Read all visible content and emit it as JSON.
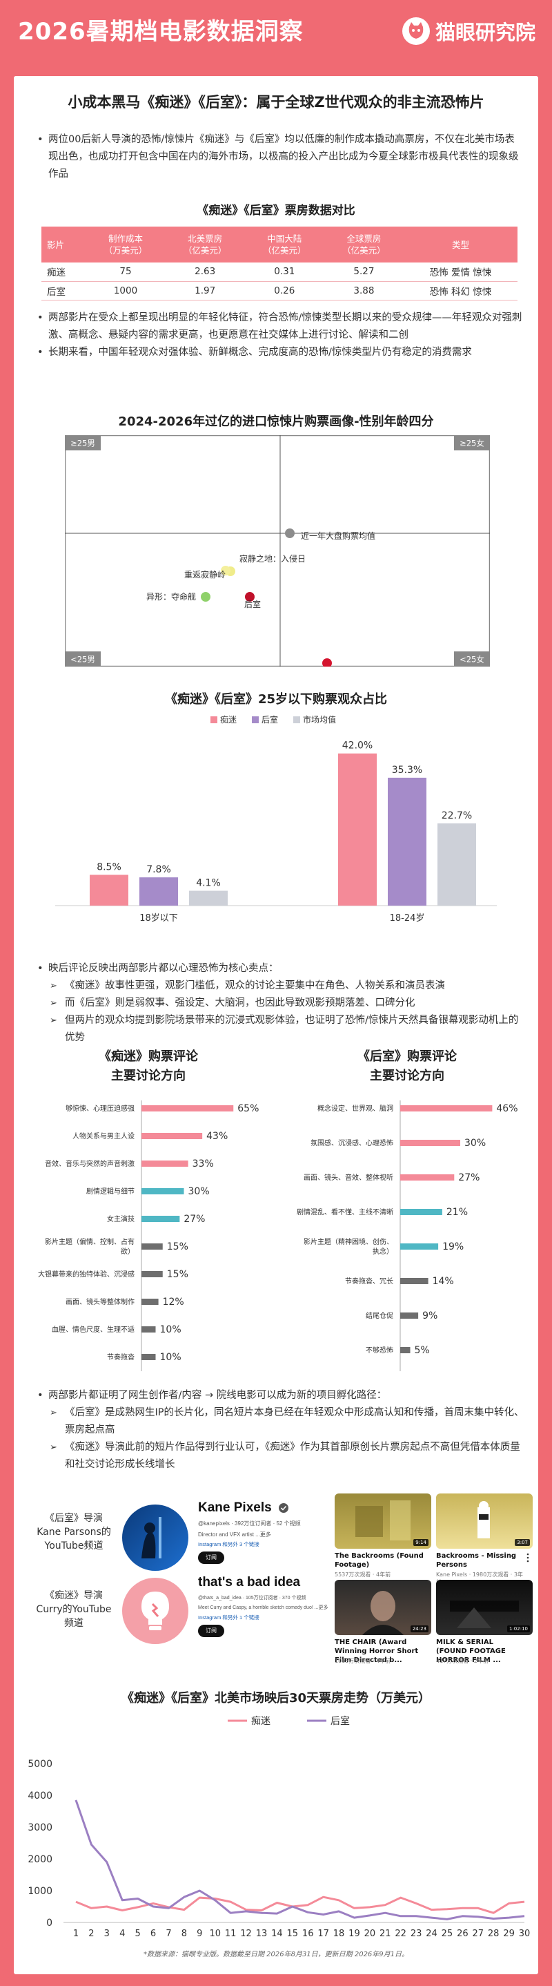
{
  "header": {
    "year": "2026",
    "title": "暑期档电影数据洞察",
    "brand": "猫眼研究院"
  },
  "headline": "小成本黑马《痴迷》《后室》：属于全球Z世代观众的非主流恐怖片",
  "intro": "两位00后新人导演的恐怖/惊悚片《痴迷》与《后室》均以低廉的制作成本撬动高票房，不仅在北美市场表现出色，也成功打开包含中国在内的海外市场，以极高的投入产出比成为今夏全球影市极具代表性的现象级作品",
  "table": {
    "title": "《痴迷》《后室》票房数据对比",
    "headers": [
      "影片",
      "制作成本\n（万美元）",
      "北美票房\n（亿美元）",
      "中国大陆\n（亿美元）",
      "全球票房\n（亿美元）",
      "类型"
    ],
    "rows": [
      [
        "痴迷",
        "75",
        "2.63",
        "0.31",
        "5.27",
        "恐怖 爱情 惊悚"
      ],
      [
        "后室",
        "1000",
        "1.97",
        "0.26",
        "3.88",
        "恐怖 科幻 惊悚"
      ]
    ]
  },
  "bullets2": [
    "两部影片在受众上都呈现出明显的年轻化特征，符合恐怖/惊悚类型长期以来的受众规律——年轻观众对强刺激、高概念、悬疑内容的需求更高，也更愿意在社交媒体上进行讨论、解读和二创",
    "长期来看，中国年轻观众对强体验、新鲜概念、完成度高的恐怖/惊悚类型片仍有稳定的消费需求"
  ],
  "quad": {
    "title": "2024-2026年过亿的进口惊悚片购票画像-性别年龄四分",
    "corners": {
      "tl": "≥25男",
      "tr": "≥25女",
      "bl": "<25男",
      "br": "<25女"
    },
    "points": [
      {
        "label": "近一年大盘购票均值",
        "color": "#8c8c8c"
      },
      {
        "label": "寂静之地：入侵日",
        "color": "#f0ec8a"
      },
      {
        "label": "重返寂静岭",
        "color": "#f4ef9c"
      },
      {
        "label": "异形：夺命舰",
        "color": "#8fd16a"
      },
      {
        "label": "后室",
        "color": "#c0102a"
      },
      {
        "label": "痴迷",
        "color": "#d4142e"
      }
    ]
  },
  "chart_data": [
    {
      "type": "bar",
      "title": "《痴迷》《后室》25岁以下购票观众占比",
      "categories": [
        "18岁以下",
        "18-24岁"
      ],
      "series": [
        {
          "name": "痴迷",
          "color": "#f48a98",
          "values": [
            8.5,
            42.0
          ]
        },
        {
          "name": "后室",
          "color": "#a58bc9",
          "values": [
            7.8,
            35.3
          ]
        },
        {
          "name": "市场均值",
          "color": "#cdd0d8",
          "values": [
            4.1,
            22.7
          ]
        }
      ],
      "value_labels": [
        [
          "8.5%",
          "42.0%"
        ],
        [
          "7.8%",
          "35.3%"
        ],
        [
          "4.1%",
          "22.7%"
        ]
      ],
      "legend": "top",
      "ylim": [
        0,
        45
      ]
    },
    {
      "type": "bar",
      "orientation": "horizontal",
      "title": "《痴迷》购票评论\n主要讨论方向",
      "categories": [
        "够惊悚、心理压迫感强",
        "人物关系与男主人设",
        "音效、音乐与突然的声音刺激",
        "剧情逻辑与细节",
        "女主演技",
        "影片主题（偏情、控制、占有欲）",
        "大银幕带来的独特体验、沉浸感",
        "画面、镜头等整体制作",
        "血腥、情色尺度、生理不适",
        "节奏拖沓"
      ],
      "values": [
        65,
        43,
        33,
        30,
        27,
        15,
        15,
        12,
        10,
        10
      ],
      "value_labels": [
        "65%",
        "43%",
        "33%",
        "30%",
        "27%",
        "15%",
        "15%",
        "12%",
        "10%",
        "10%"
      ],
      "colors": [
        "#f48a98",
        "#f48a98",
        "#f48a98",
        "#4fb7c4",
        "#4fb7c4",
        "#6e6e6e",
        "#6e6e6e",
        "#6e6e6e",
        "#6e6e6e",
        "#6e6e6e"
      ]
    },
    {
      "type": "bar",
      "orientation": "horizontal",
      "title": "《后室》购票评论\n主要讨论方向",
      "categories": [
        "概念设定、世界观、脑洞",
        "氛围感、沉浸感、心理恐怖",
        "画面、镜头、音效、整体视听",
        "剧情混乱、看不懂、主线不清晰",
        "影片主题（精神困境、创伤、执念）",
        "节奏拖沓、冗长",
        "结尾仓促",
        "不够恐怖"
      ],
      "values": [
        46,
        30,
        27,
        21,
        19,
        14,
        9,
        5
      ],
      "value_labels": [
        "46%",
        "30%",
        "27%",
        "21%",
        "19%",
        "14%",
        "9%",
        "5%"
      ],
      "colors": [
        "#f48a98",
        "#f48a98",
        "#f48a98",
        "#4fb7c4",
        "#4fb7c4",
        "#6e6e6e",
        "#6e6e6e",
        "#6e6e6e"
      ]
    },
    {
      "type": "line",
      "title": "《痴迷》《后室》北美市场映后30天票房走势（万美元）",
      "x": [
        1,
        2,
        3,
        4,
        5,
        6,
        7,
        8,
        9,
        10,
        11,
        12,
        13,
        14,
        15,
        16,
        17,
        18,
        19,
        20,
        21,
        22,
        23,
        24,
        25,
        26,
        27,
        28,
        29,
        30
      ],
      "series": [
        {
          "name": "痴迷",
          "color": "#f48a98",
          "values": [
            650,
            450,
            500,
            380,
            480,
            600,
            480,
            400,
            780,
            750,
            650,
            400,
            380,
            620,
            500,
            550,
            800,
            700,
            450,
            480,
            550,
            780,
            600,
            400,
            420,
            450,
            450,
            300,
            600,
            650
          ]
        },
        {
          "name": "后室",
          "color": "#9b7fc2",
          "values": [
            3850,
            2450,
            1900,
            700,
            750,
            500,
            450,
            800,
            1000,
            700,
            300,
            350,
            300,
            280,
            500,
            320,
            250,
            350,
            150,
            220,
            300,
            200,
            200,
            150,
            100,
            200,
            180,
            120,
            150,
            200
          ]
        }
      ],
      "yticks": [
        0,
        1000,
        2000,
        3000,
        4000,
        5000
      ],
      "ylim": [
        0,
        5000
      ],
      "legend": "top"
    }
  ],
  "bullets3": {
    "lead": "映后评论反映出两部影片都以心理恐怖为核心卖点：",
    "subs": [
      "《痴迷》故事性更强，观影门槛低，观众的讨论主要集中在角色、人物关系和演员表演",
      "而《后室》则是弱叙事、强设定、大脑洞，也因此导致观影预期落差、口碑分化",
      "但两片的观众均提到影院场景带来的沉浸式观影体验，也证明了恐怖/惊悚片天然具备银幕观影动机上的优势"
    ]
  },
  "bullets4": {
    "lead": "两部影片都证明了网生创作者/内容 → 院线电影可以成为新的项目孵化路径：",
    "subs": [
      "《后室》是成熟网生IP的长片化，同名短片本身已经在年轻观众中形成高认知和传播，首周末集中转化、票房起点高",
      "《痴迷》导演此前的短片作品得到行业认可，《痴迷》作为其首部原创长片票房起点不高但凭借本体质量和社交讨论形成长线增长"
    ]
  },
  "yt": {
    "label1": "《后室》导演\nKane Parsons的\nYouTube频道",
    "label2": "《痴迷》导演\nCurry的YouTube\n频道",
    "ch1": {
      "name": "Kane Pixels",
      "handle": "@kanepixels · 392万位订阅者 · 52 个视频",
      "desc": "Director and VFX artist ...更多",
      "links": "Instagram 和另外 3 个链接",
      "btn": "订阅"
    },
    "ch2": {
      "name": "that's a bad idea",
      "handle": "@thats_a_bad_idea · 105万位订阅者 · 370 个视频",
      "desc": "Meet Curry and Caspy, a horrible sketch comedy duo! ...更多",
      "links": "Instagram 和另外 1 个链接",
      "btn": "订阅"
    },
    "videos": [
      {
        "title": "The Backrooms (Found Footage)",
        "meta": "5537万次观看 · 4年前",
        "dur": "9:14"
      },
      {
        "title": "Backrooms - Missing Persons",
        "meta": "Kane Pixels · 1980万次观看 · 3年前",
        "dur": "3:07"
      },
      {
        "title": "THE CHAIR (Award Winning Horror Short Film Directed b...",
        "meta": "1065万次观看 · 4年前",
        "dur": "24:23"
      },
      {
        "title": "MILK & SERIAL (FOUND FOOTAGE HORROR FILM ...",
        "meta": "417万次观看 · 2年前",
        "dur": "1:02:10"
      }
    ]
  },
  "footer": "*数据来源：猫眼专业版。数据截至日期 2026年8月31日，更新日期 2026年9月1日。"
}
